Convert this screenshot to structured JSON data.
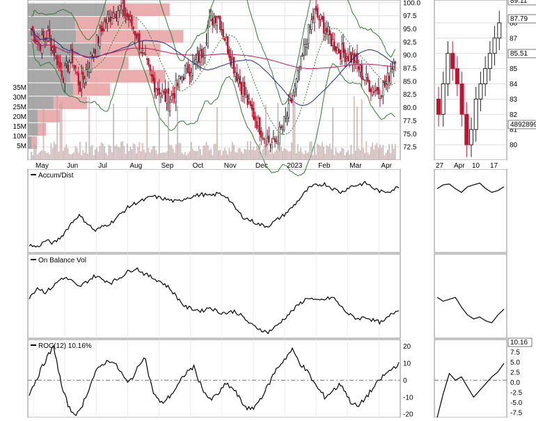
{
  "chart_data": [
    {
      "type": "candlestick",
      "panel": "price",
      "ylim": [
        70,
        100.5
      ],
      "price_ticks": [
        "100.0",
        "97.5",
        "95.0",
        "92.5",
        "90.0",
        "87.5",
        "85.0",
        "82.5",
        "80.0",
        "77.5",
        "75.0",
        "72.5"
      ],
      "volume_ticks": [
        "35M",
        "30M",
        "25M",
        "20M",
        "15M",
        "10M",
        "5M"
      ],
      "months": [
        "May",
        "Jun",
        "Jul",
        "Aug",
        "Sep",
        "Oct",
        "Nov",
        "Dec",
        "2023",
        "Feb",
        "Mar",
        "Apr"
      ],
      "close_path": [
        95,
        92,
        94,
        90,
        86,
        90,
        84,
        88,
        92,
        96,
        98,
        99,
        97,
        94,
        89,
        85,
        83,
        81,
        84,
        87,
        88,
        90,
        96,
        98,
        93,
        88,
        84,
        80,
        77,
        74,
        73,
        76,
        80,
        86,
        93,
        98,
        96,
        93,
        91,
        90,
        89,
        86,
        84,
        83,
        85,
        90
      ],
      "volume_profile_millions": [
        31,
        24,
        34,
        29,
        22,
        30,
        18,
        13,
        7,
        4,
        2
      ],
      "colors": {
        "up": "#222222",
        "down": "#c8102e",
        "profile_up": "#999999",
        "profile_down": "#e8a0a0",
        "sma50": "#1f2a8c",
        "sma200": "#c2185b",
        "bands": "#2e7d32"
      }
    },
    {
      "type": "line",
      "panel": "zoom",
      "price_ticks": [
        "88",
        "87",
        "86",
        "85",
        "84",
        "83",
        "82",
        "81",
        "80"
      ],
      "dates": [
        "27",
        "Apr",
        "10",
        "17"
      ],
      "right_labels": [
        "89.11",
        "87.79",
        "85.51",
        "4892899"
      ]
    },
    {
      "type": "line",
      "panel": "indicator",
      "label": "Accum/Dist",
      "values": [
        40,
        38,
        45,
        42,
        50,
        62,
        72,
        64,
        55,
        60,
        64,
        72,
        80,
        85,
        88,
        92,
        90,
        88,
        86,
        90,
        92,
        94,
        92,
        95,
        92,
        80,
        70,
        66,
        62,
        60,
        66,
        72,
        80,
        90,
        100,
        104,
        105,
        100,
        96,
        102,
        104,
        106,
        100,
        96,
        98,
        102
      ]
    },
    {
      "type": "line",
      "panel": "indicator",
      "label": "On Balance Vol",
      "values": [
        40,
        50,
        45,
        52,
        60,
        58,
        50,
        56,
        62,
        58,
        55,
        60,
        66,
        70,
        64,
        60,
        56,
        50,
        40,
        30,
        28,
        26,
        30,
        25,
        24,
        26,
        20,
        12,
        8,
        4,
        10,
        18,
        26,
        34,
        40,
        36,
        38,
        40,
        30,
        22,
        18,
        20,
        16,
        14,
        22,
        28
      ]
    },
    {
      "type": "line",
      "panel": "indicator",
      "label": "ROC(12) 10.16%",
      "ticks": [
        "20",
        "10",
        "0",
        "-10",
        "-20"
      ],
      "right_ticks": [
        "10.16",
        "7.5",
        "5.0",
        "2.5",
        "0.0",
        "-2.5",
        "-5.0",
        "-7.5"
      ],
      "values": [
        -8,
        2,
        12,
        20,
        -5,
        -18,
        -20,
        -8,
        4,
        10,
        12,
        6,
        -2,
        5,
        15,
        -6,
        -14,
        -10,
        -4,
        4,
        8,
        -4,
        -12,
        -8,
        -2,
        -6,
        -14,
        -18,
        -12,
        -4,
        6,
        12,
        18,
        10,
        4,
        -4,
        -10,
        -6,
        -2,
        -12,
        -16,
        -10,
        -4,
        2,
        6,
        10
      ]
    }
  ]
}
